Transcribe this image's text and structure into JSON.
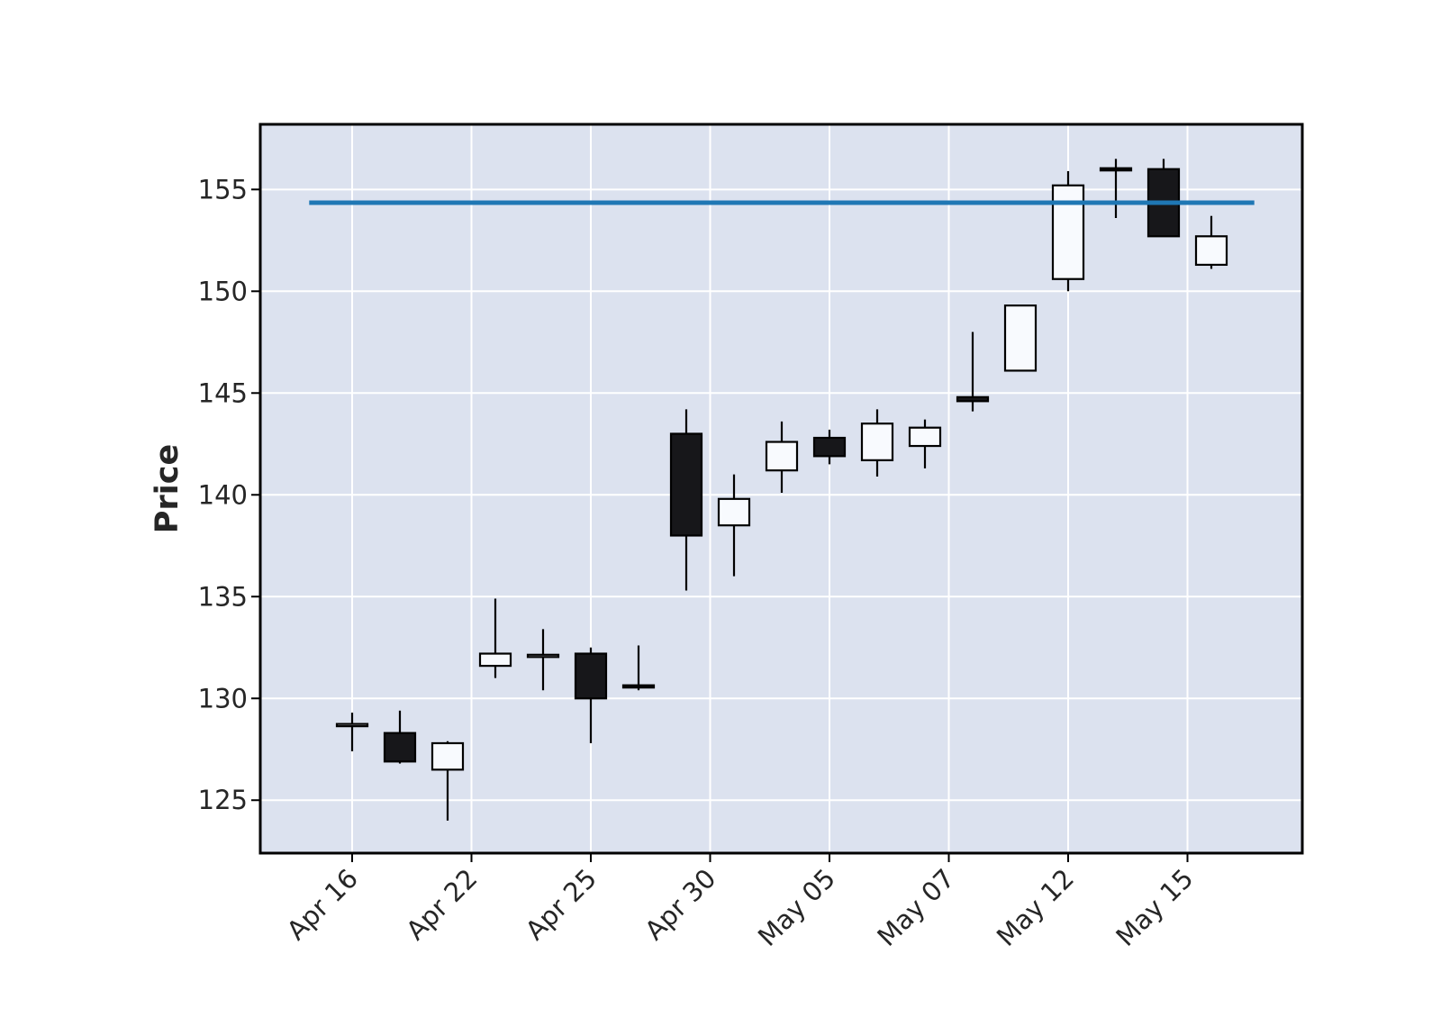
{
  "chart_data": {
    "type": "candlestick",
    "ylabel": "Price",
    "ylim": [
      122.4,
      158.2
    ],
    "y_ticks": [
      125,
      130,
      135,
      140,
      145,
      150,
      155
    ],
    "x_tick_labels": [
      "Apr 16",
      "Apr 22",
      "Apr 25",
      "Apr 30",
      "May 05",
      "May 07",
      "May 12",
      "May 15"
    ],
    "x_tick_positions": [
      0,
      2.5,
      5,
      7.5,
      10,
      12.5,
      15,
      17.5
    ],
    "grid": true,
    "candles": [
      {
        "open": 128.7,
        "high": 129.3,
        "low": 127.4,
        "close": 128.7
      },
      {
        "open": 128.3,
        "high": 129.4,
        "low": 126.8,
        "close": 126.9
      },
      {
        "open": 126.5,
        "high": 127.9,
        "low": 124.0,
        "close": 127.8
      },
      {
        "open": 131.6,
        "high": 134.9,
        "low": 131.0,
        "close": 132.2
      },
      {
        "open": 132.0,
        "high": 133.4,
        "low": 130.4,
        "close": 132.1
      },
      {
        "open": 132.2,
        "high": 132.5,
        "low": 127.8,
        "close": 130.0
      },
      {
        "open": 130.6,
        "high": 132.6,
        "low": 130.4,
        "close": 130.5
      },
      {
        "open": 143.0,
        "high": 144.2,
        "low": 135.3,
        "close": 138.0
      },
      {
        "open": 138.5,
        "high": 141.0,
        "low": 136.0,
        "close": 139.8
      },
      {
        "open": 141.2,
        "high": 143.6,
        "low": 140.1,
        "close": 142.6
      },
      {
        "open": 142.8,
        "high": 143.2,
        "low": 141.5,
        "close": 141.9
      },
      {
        "open": 141.7,
        "high": 144.2,
        "low": 140.9,
        "close": 143.5
      },
      {
        "open": 142.4,
        "high": 143.7,
        "low": 141.3,
        "close": 143.3
      },
      {
        "open": 144.8,
        "high": 148.0,
        "low": 144.1,
        "close": 144.6
      },
      {
        "open": 146.1,
        "high": 149.3,
        "low": 146.1,
        "close": 149.3
      },
      {
        "open": 150.6,
        "high": 155.9,
        "low": 150.0,
        "close": 155.2
      },
      {
        "open": 156.0,
        "high": 156.5,
        "low": 153.6,
        "close": 155.9
      },
      {
        "open": 156.0,
        "high": 156.5,
        "low": 152.7,
        "close": 152.7
      },
      {
        "open": 151.3,
        "high": 153.7,
        "low": 151.1,
        "close": 152.7
      }
    ],
    "hline": {
      "value": 154.35,
      "color": "#1f77b4"
    },
    "colors": {
      "plot_background": "#dce2ef",
      "grid": "#ffffff",
      "frame": "#000000",
      "up_fill": "#f8fafe",
      "down_fill": "#17171a",
      "edge": "#000000",
      "wick": "#000000"
    }
  }
}
